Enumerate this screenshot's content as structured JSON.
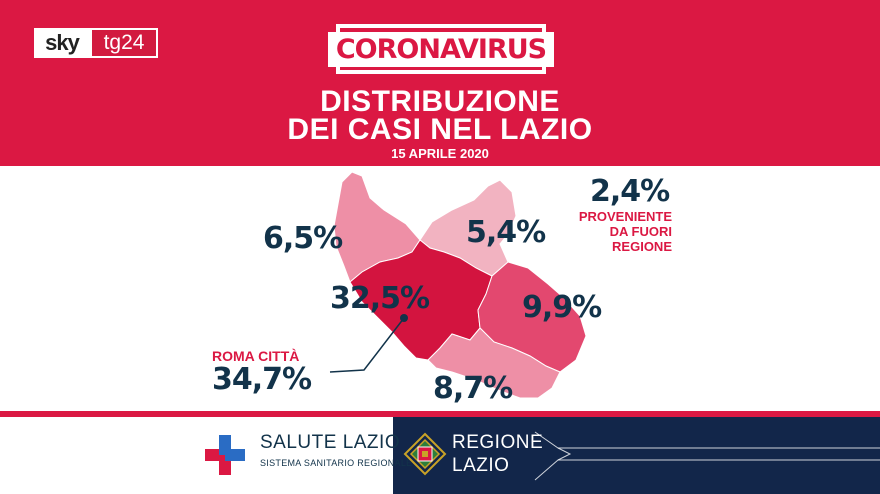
{
  "logo": {
    "sky": "sky",
    "tg": "tg24"
  },
  "header": {
    "badge": "CORONAVIRUS",
    "title_line1": "DISTRIBUZIONE",
    "title_line2": "DEI CASI NEL LAZIO",
    "date": "15 APRILE 2020"
  },
  "regions": [
    {
      "id": "viterbo",
      "value": "6,5%"
    },
    {
      "id": "rieti",
      "value": "5,4%"
    },
    {
      "id": "roma-provincia",
      "value": "32,5%"
    },
    {
      "id": "frosinone",
      "value": "9,9%"
    },
    {
      "id": "latina",
      "value": "8,7%"
    }
  ],
  "outside": {
    "value": "2,4%",
    "label_line1": "PROVENIENTE",
    "label_line2": "DA FUORI",
    "label_line3": "REGIONE"
  },
  "roma_citta": {
    "label": "ROMA CITTÀ",
    "value": "34,7%"
  },
  "footer": {
    "salute_title": "SALUTE LAZIO",
    "salute_subtitle": "SISTEMA SANITARIO REGIONALE",
    "regione_line1": "REGIONE",
    "regione_line2": "LAZIO"
  },
  "colors": {
    "primary_red": "#db1843",
    "navy": "#12334a",
    "map_light": "#ee8fa6",
    "map_mid": "#e3486f",
    "map_dark": "#d3143f"
  }
}
